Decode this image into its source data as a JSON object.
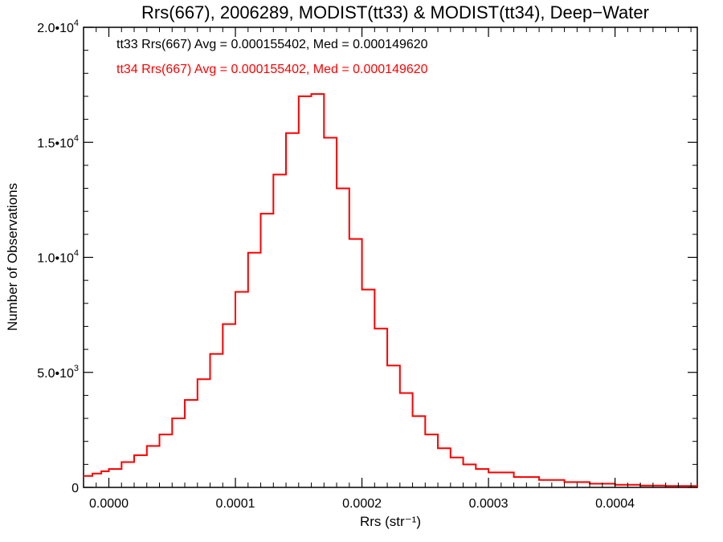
{
  "chart_data": {
    "type": "histogram",
    "title": "Rrs(667), 2006289, MODIST(tt33) & MODIST(tt34), Deep−Water",
    "xlabel": "Rrs (str⁻¹)",
    "ylabel": "Number of Observations",
    "xlim": [
      -2e-05,
      0.000465
    ],
    "ylim": [
      0,
      20000
    ],
    "x_ticks": [
      0.0,
      0.0001,
      0.0002,
      0.0003,
      0.0004
    ],
    "x_tick_labels": [
      "0.0000",
      "0.0001",
      "0.0002",
      "0.0003",
      "0.0004"
    ],
    "y_ticks": [
      0,
      5000,
      10000,
      15000,
      20000
    ],
    "y_tick_labels": [
      {
        "base": "0",
        "exp": ""
      },
      {
        "base": "5.0•10",
        "exp": "3"
      },
      {
        "base": "1.0•10",
        "exp": "4"
      },
      {
        "base": "1.5•10",
        "exp": "4"
      },
      {
        "base": "2.0•10",
        "exp": "4"
      }
    ],
    "grid": false,
    "annotations": [
      {
        "text": "tt33 Rrs(667) Avg = 0.000155402, Med = 0.000149620",
        "color": "#000000"
      },
      {
        "text": "tt34 Rrs(667) Avg = 0.000155402, Med = 0.000149620",
        "color": "#ff0000"
      }
    ],
    "series": [
      {
        "name": "tt33",
        "color": "#000000",
        "x": [
          -2e-05,
          -1.3e-05,
          -6e-06,
          0.0,
          1e-05,
          2e-05,
          3e-05,
          4e-05,
          5e-05,
          6e-05,
          7e-05,
          8e-05,
          9e-05,
          0.0001,
          0.00011,
          0.00012,
          0.00013,
          0.00014,
          0.00015,
          0.00016,
          0.00017,
          0.00018,
          0.00019,
          0.0002,
          0.00021,
          0.00022,
          0.00023,
          0.00024,
          0.00025,
          0.00026,
          0.00027,
          0.00028,
          0.00029,
          0.0003,
          0.00032,
          0.00034,
          0.00036,
          0.00038,
          0.0004,
          0.00042,
          0.00044,
          0.000465
        ],
        "y": [
          500,
          600,
          700,
          800,
          1100,
          1400,
          1800,
          2300,
          3000,
          3800,
          4700,
          5800,
          7100,
          8500,
          10200,
          11900,
          13600,
          15400,
          17000,
          17100,
          15200,
          13000,
          10800,
          8600,
          6900,
          5300,
          4100,
          3100,
          2300,
          1700,
          1300,
          1000,
          800,
          650,
          450,
          320,
          230,
          160,
          110,
          80,
          60,
          40
        ]
      },
      {
        "name": "tt34",
        "color": "#ff0000",
        "x": [
          -2e-05,
          -1.3e-05,
          -6e-06,
          0.0,
          1e-05,
          2e-05,
          3e-05,
          4e-05,
          5e-05,
          6e-05,
          7e-05,
          8e-05,
          9e-05,
          0.0001,
          0.00011,
          0.00012,
          0.00013,
          0.00014,
          0.00015,
          0.00016,
          0.00017,
          0.00018,
          0.00019,
          0.0002,
          0.00021,
          0.00022,
          0.00023,
          0.00024,
          0.00025,
          0.00026,
          0.00027,
          0.00028,
          0.00029,
          0.0003,
          0.00032,
          0.00034,
          0.00036,
          0.00038,
          0.0004,
          0.00042,
          0.00044,
          0.000465
        ],
        "y": [
          500,
          600,
          700,
          800,
          1100,
          1400,
          1800,
          2300,
          3000,
          3800,
          4700,
          5800,
          7100,
          8500,
          10200,
          11900,
          13600,
          15400,
          17000,
          17100,
          15200,
          13000,
          10800,
          8600,
          6900,
          5300,
          4100,
          3100,
          2300,
          1700,
          1300,
          1000,
          800,
          650,
          450,
          320,
          230,
          160,
          110,
          80,
          60,
          40
        ]
      }
    ]
  }
}
